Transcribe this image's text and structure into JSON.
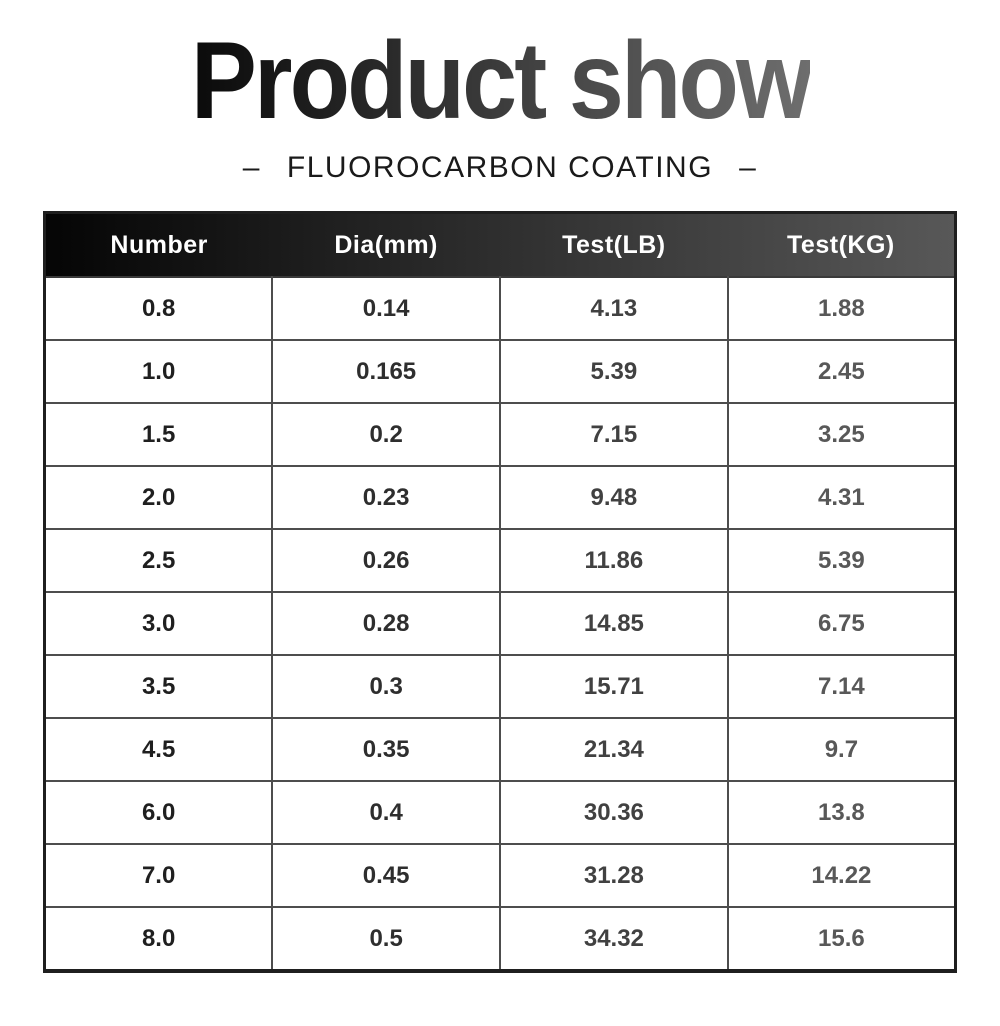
{
  "page": {
    "background_color": "#ffffff"
  },
  "header": {
    "title": "Product show",
    "title_gradient_left": "#0a0a0a",
    "title_gradient_right": "#6e6e6e",
    "subtitle": "FLUOROCARBON COATING",
    "subtitle_dash": "–"
  },
  "table": {
    "columns": [
      "Number",
      "Dia(mm)",
      "Test(LB)",
      "Test(KG)"
    ],
    "header_gradient_left": "#050505",
    "header_gradient_right": "#585858",
    "header_text_color": "#ffffff",
    "column_text_colors": [
      "#1f1f1f",
      "#2e2e2e",
      "#414141",
      "#585858"
    ],
    "rows": [
      [
        "0.8",
        "0.14",
        "4.13",
        "1.88"
      ],
      [
        "1.0",
        "0.165",
        "5.39",
        "2.45"
      ],
      [
        "1.5",
        "0.2",
        "7.15",
        "3.25"
      ],
      [
        "2.0",
        "0.23",
        "9.48",
        "4.31"
      ],
      [
        "2.5",
        "0.26",
        "11.86",
        "5.39"
      ],
      [
        "3.0",
        "0.28",
        "14.85",
        "6.75"
      ],
      [
        "3.5",
        "0.3",
        "15.71",
        "7.14"
      ],
      [
        "4.5",
        "0.35",
        "21.34",
        "9.7"
      ],
      [
        "6.0",
        "0.4",
        "30.36",
        "13.8"
      ],
      [
        "7.0",
        "0.45",
        "31.28",
        "14.22"
      ],
      [
        "8.0",
        "0.5",
        "34.32",
        "15.6"
      ]
    ]
  }
}
